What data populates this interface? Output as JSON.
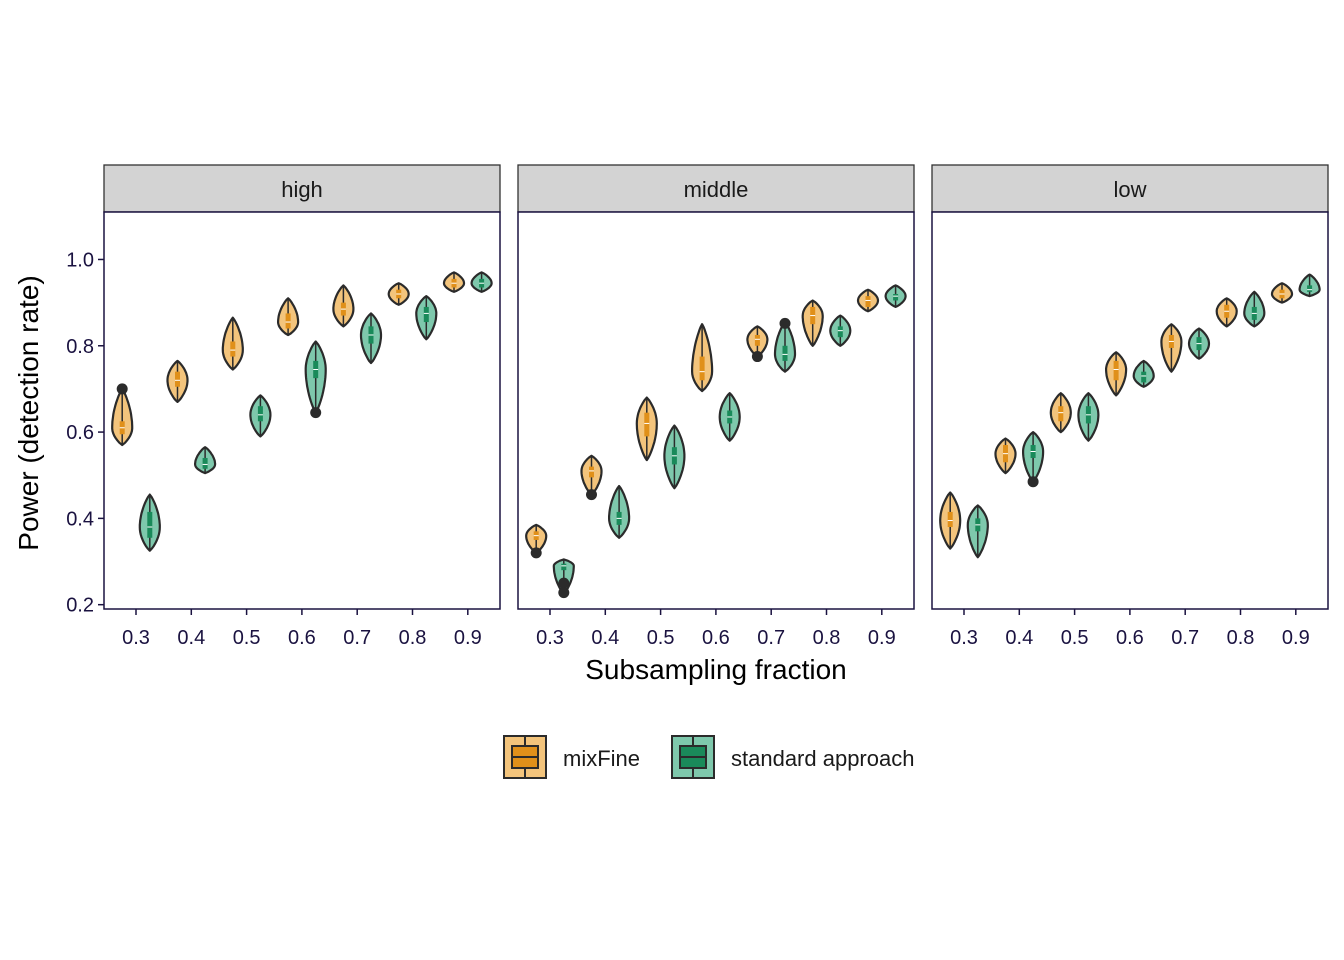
{
  "chart_data": {
    "type": "violin",
    "xlabel": "Subsampling fraction",
    "ylabel": "Power (detection rate)",
    "ylim": [
      0.19,
      1.11
    ],
    "yticks": [
      "0.2",
      "0.4",
      "0.6",
      "0.8",
      "1.0"
    ],
    "categories": [
      "0.3",
      "0.4",
      "0.5",
      "0.6",
      "0.7",
      "0.8",
      "0.9"
    ],
    "legend": {
      "position": "bottom",
      "entries": [
        "mixFine",
        "standard approach"
      ]
    },
    "colors": {
      "mixFine": {
        "fill": "#f3c47c",
        "dark": "#e0901a"
      },
      "standard approach": {
        "fill": "#7ec8ac",
        "dark": "#1a8a5a"
      },
      "outline": "#2b2b2b",
      "strip": "#d3d3d3",
      "axis": "#1a1240"
    },
    "panels": [
      {
        "label": "high",
        "series": [
          {
            "name": "mixFine",
            "violins": [
              {
                "min": 0.57,
                "max": 0.7,
                "q1": 0.595,
                "med": 0.61,
                "q3": 0.625,
                "outliers": [
                  0.7
                ]
              },
              {
                "min": 0.67,
                "max": 0.765,
                "q1": 0.705,
                "med": 0.72,
                "q3": 0.74,
                "outliers": []
              },
              {
                "min": 0.745,
                "max": 0.865,
                "q1": 0.775,
                "med": 0.79,
                "q3": 0.81,
                "outliers": []
              },
              {
                "min": 0.825,
                "max": 0.91,
                "q1": 0.84,
                "med": 0.855,
                "q3": 0.875,
                "outliers": []
              },
              {
                "min": 0.845,
                "max": 0.94,
                "q1": 0.87,
                "med": 0.885,
                "q3": 0.9,
                "outliers": []
              },
              {
                "min": 0.895,
                "max": 0.945,
                "q1": 0.91,
                "med": 0.92,
                "q3": 0.93,
                "outliers": []
              },
              {
                "min": 0.925,
                "max": 0.97,
                "q1": 0.935,
                "med": 0.945,
                "q3": 0.955,
                "outliers": []
              }
            ]
          },
          {
            "name": "standard approach",
            "violins": [
              {
                "min": 0.325,
                "max": 0.455,
                "q1": 0.355,
                "med": 0.38,
                "q3": 0.415,
                "outliers": []
              },
              {
                "min": 0.505,
                "max": 0.565,
                "q1": 0.515,
                "med": 0.525,
                "q3": 0.54,
                "outliers": []
              },
              {
                "min": 0.59,
                "max": 0.685,
                "q1": 0.625,
                "med": 0.64,
                "q3": 0.66,
                "outliers": []
              },
              {
                "min": 0.645,
                "max": 0.81,
                "q1": 0.725,
                "med": 0.745,
                "q3": 0.765,
                "outliers": [
                  0.645
                ]
              },
              {
                "min": 0.76,
                "max": 0.875,
                "q1": 0.805,
                "med": 0.825,
                "q3": 0.845,
                "outliers": []
              },
              {
                "min": 0.815,
                "max": 0.915,
                "q1": 0.855,
                "med": 0.875,
                "q3": 0.89,
                "outliers": []
              },
              {
                "min": 0.925,
                "max": 0.97,
                "q1": 0.935,
                "med": 0.945,
                "q3": 0.955,
                "outliers": []
              }
            ]
          }
        ]
      },
      {
        "label": "middle",
        "series": [
          {
            "name": "mixFine",
            "violins": [
              {
                "min": 0.32,
                "max": 0.385,
                "q1": 0.35,
                "med": 0.36,
                "q3": 0.37,
                "outliers": [
                  0.32
                ]
              },
              {
                "min": 0.455,
                "max": 0.545,
                "q1": 0.495,
                "med": 0.51,
                "q3": 0.52,
                "outliers": [
                  0.455
                ]
              },
              {
                "min": 0.535,
                "max": 0.68,
                "q1": 0.59,
                "med": 0.62,
                "q3": 0.645,
                "outliers": []
              },
              {
                "min": 0.695,
                "max": 0.85,
                "q1": 0.72,
                "med": 0.74,
                "q3": 0.775,
                "outliers": []
              },
              {
                "min": 0.775,
                "max": 0.845,
                "q1": 0.8,
                "med": 0.815,
                "q3": 0.825,
                "outliers": [
                  0.775
                ]
              },
              {
                "min": 0.8,
                "max": 0.905,
                "q1": 0.85,
                "med": 0.87,
                "q3": 0.89,
                "outliers": []
              },
              {
                "min": 0.88,
                "max": 0.93,
                "q1": 0.89,
                "med": 0.905,
                "q3": 0.915,
                "outliers": []
              }
            ]
          },
          {
            "name": "standard approach",
            "violins": [
              {
                "min": 0.225,
                "max": 0.305,
                "q1": 0.28,
                "med": 0.29,
                "q3": 0.295,
                "outliers": [
                  0.25,
                  0.228
                ]
              },
              {
                "min": 0.355,
                "max": 0.475,
                "q1": 0.385,
                "med": 0.4,
                "q3": 0.415,
                "outliers": []
              },
              {
                "min": 0.47,
                "max": 0.615,
                "q1": 0.525,
                "med": 0.545,
                "q3": 0.565,
                "outliers": []
              },
              {
                "min": 0.58,
                "max": 0.69,
                "q1": 0.62,
                "med": 0.635,
                "q3": 0.65,
                "outliers": []
              },
              {
                "min": 0.74,
                "max": 0.855,
                "q1": 0.765,
                "med": 0.78,
                "q3": 0.8,
                "outliers": [
                  0.852
                ]
              },
              {
                "min": 0.8,
                "max": 0.87,
                "q1": 0.82,
                "med": 0.835,
                "q3": 0.845,
                "outliers": []
              },
              {
                "min": 0.89,
                "max": 0.94,
                "q1": 0.905,
                "med": 0.915,
                "q3": 0.92,
                "outliers": []
              }
            ]
          }
        ]
      },
      {
        "label": "low",
        "series": [
          {
            "name": "mixFine",
            "violins": [
              {
                "min": 0.33,
                "max": 0.46,
                "q1": 0.38,
                "med": 0.395,
                "q3": 0.415,
                "outliers": []
              },
              {
                "min": 0.505,
                "max": 0.585,
                "q1": 0.53,
                "med": 0.55,
                "q3": 0.57,
                "outliers": []
              },
              {
                "min": 0.6,
                "max": 0.69,
                "q1": 0.625,
                "med": 0.645,
                "q3": 0.66,
                "outliers": []
              },
              {
                "min": 0.685,
                "max": 0.785,
                "q1": 0.72,
                "med": 0.745,
                "q3": 0.765,
                "outliers": []
              },
              {
                "min": 0.74,
                "max": 0.85,
                "q1": 0.795,
                "med": 0.81,
                "q3": 0.825,
                "outliers": []
              },
              {
                "min": 0.845,
                "max": 0.91,
                "q1": 0.865,
                "med": 0.88,
                "q3": 0.895,
                "outliers": []
              },
              {
                "min": 0.9,
                "max": 0.945,
                "q1": 0.91,
                "med": 0.92,
                "q3": 0.93,
                "outliers": []
              }
            ]
          },
          {
            "name": "standard approach",
            "violins": [
              {
                "min": 0.31,
                "max": 0.43,
                "q1": 0.37,
                "med": 0.385,
                "q3": 0.4,
                "outliers": []
              },
              {
                "min": 0.485,
                "max": 0.6,
                "q1": 0.54,
                "med": 0.555,
                "q3": 0.57,
                "outliers": [
                  0.485
                ]
              },
              {
                "min": 0.58,
                "max": 0.69,
                "q1": 0.62,
                "med": 0.64,
                "q3": 0.66,
                "outliers": []
              },
              {
                "min": 0.705,
                "max": 0.765,
                "q1": 0.715,
                "med": 0.73,
                "q3": 0.74,
                "outliers": []
              },
              {
                "min": 0.77,
                "max": 0.84,
                "q1": 0.79,
                "med": 0.805,
                "q3": 0.82,
                "outliers": []
              },
              {
                "min": 0.845,
                "max": 0.925,
                "q1": 0.86,
                "med": 0.875,
                "q3": 0.89,
                "outliers": []
              },
              {
                "min": 0.915,
                "max": 0.965,
                "q1": 0.925,
                "med": 0.93,
                "q3": 0.94,
                "outliers": []
              }
            ]
          }
        ]
      }
    ]
  }
}
